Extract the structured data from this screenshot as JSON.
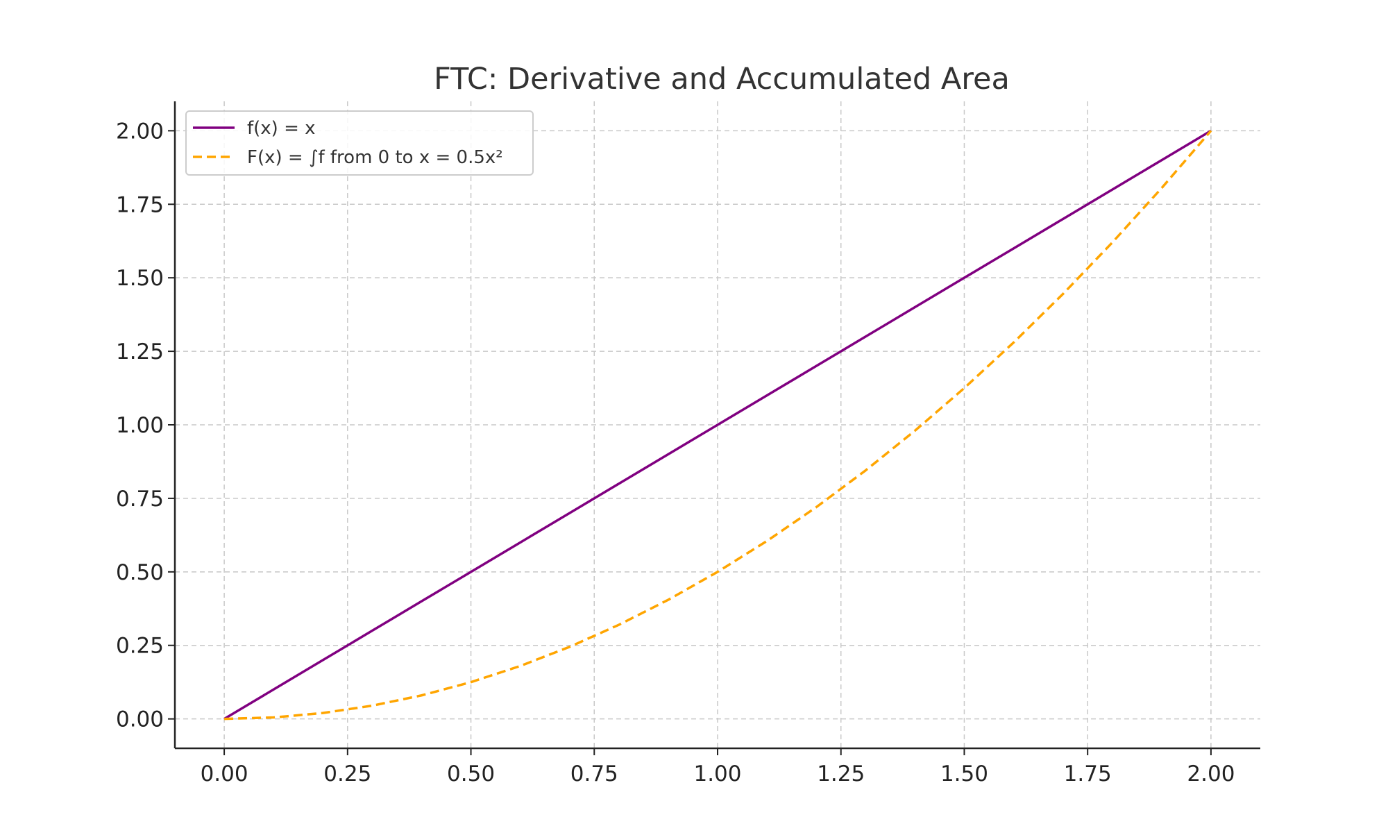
{
  "chart_data": {
    "type": "line",
    "title": "FTC: Derivative and Accumulated Area",
    "xlabel": "",
    "ylabel": "",
    "xlim": [
      -0.1,
      2.1
    ],
    "ylim": [
      -0.1,
      2.1
    ],
    "x_ticks": [
      "0.00",
      "0.25",
      "0.50",
      "0.75",
      "1.00",
      "1.25",
      "1.50",
      "1.75",
      "2.00"
    ],
    "y_ticks": [
      "0.00",
      "0.25",
      "0.50",
      "0.75",
      "1.00",
      "1.25",
      "1.50",
      "1.75",
      "2.00"
    ],
    "grid": true,
    "legend_position": "top-left",
    "x": [
      0.0,
      0.1,
      0.2,
      0.3,
      0.4,
      0.5,
      0.6,
      0.7,
      0.8,
      0.9,
      1.0,
      1.1,
      1.2,
      1.3,
      1.4,
      1.5,
      1.6,
      1.7,
      1.8,
      1.9,
      2.0
    ],
    "series": [
      {
        "name": "f(x) = x",
        "color": "#800080",
        "style": "solid",
        "values": [
          0.0,
          0.1,
          0.2,
          0.3,
          0.4,
          0.5,
          0.6,
          0.7,
          0.8,
          0.9,
          1.0,
          1.1,
          1.2,
          1.3,
          1.4,
          1.5,
          1.6,
          1.7,
          1.8,
          1.9,
          2.0
        ]
      },
      {
        "name": "F(x) = ∫f from 0 to x = 0.5x²",
        "color": "#FFA500",
        "style": "dashed",
        "values": [
          0.0,
          0.005,
          0.02,
          0.045,
          0.08,
          0.125,
          0.18,
          0.245,
          0.32,
          0.405,
          0.5,
          0.605,
          0.72,
          0.845,
          0.98,
          1.125,
          1.28,
          1.445,
          1.62,
          1.805,
          2.0
        ]
      }
    ]
  }
}
